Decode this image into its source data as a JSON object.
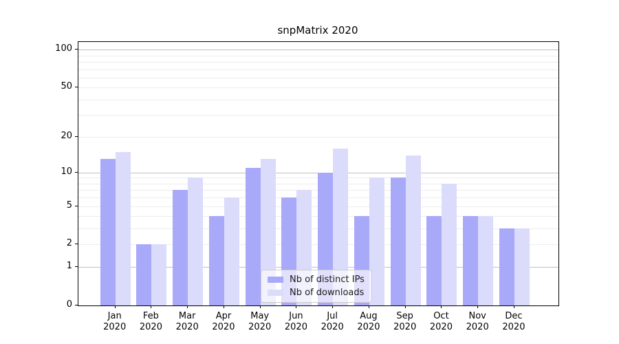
{
  "chart_data": {
    "type": "bar",
    "title": "snpMatrix 2020",
    "year_label": "2020",
    "categories": [
      "Jan",
      "Feb",
      "Mar",
      "Apr",
      "May",
      "Jun",
      "Jul",
      "Aug",
      "Sep",
      "Oct",
      "Nov",
      "Dec"
    ],
    "series": [
      {
        "name": "Nb of distinct IPs",
        "color": "#a9a9fa",
        "values": [
          13,
          2,
          7,
          4,
          11,
          6,
          10,
          4,
          9,
          4,
          4,
          3
        ]
      },
      {
        "name": "Nb of downloads",
        "color": "#dbdbfb",
        "values": [
          15,
          2,
          9,
          6,
          13,
          7,
          16,
          9,
          14,
          8,
          4,
          3
        ]
      }
    ],
    "yscale": "log1p",
    "ylim": [
      0,
      115
    ],
    "y_tick_values": [
      100,
      50,
      20,
      10,
      5,
      2,
      1,
      0
    ],
    "y_tick_labels": [
      "100",
      "50",
      "20",
      "10",
      "5",
      "2",
      "1",
      "0"
    ],
    "y_major_gridlines": [
      1,
      10,
      100
    ],
    "y_minor_gridlines": [
      2,
      3,
      4,
      5,
      6,
      7,
      8,
      9,
      20,
      30,
      40,
      50,
      60,
      70,
      80,
      90
    ],
    "grid": "on",
    "legend_position": "lower center",
    "legend_labels": [
      "Nb of distinct IPs",
      "Nb of downloads"
    ]
  }
}
